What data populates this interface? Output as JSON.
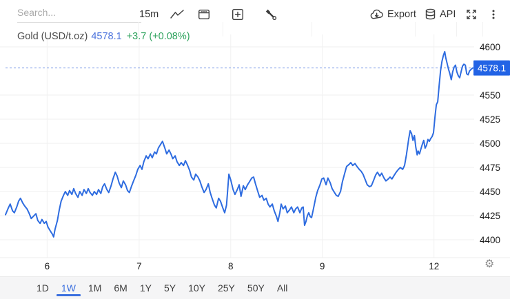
{
  "toolbar": {
    "search_placeholder": "Search...",
    "interval_label": "15m",
    "export_label": "Export",
    "api_label": "API"
  },
  "icons": {
    "settings": "⚙"
  },
  "header": {
    "symbol": "Gold (USD/t.oz)",
    "price": "4578.1",
    "change": "+3.7 (+0.08%)"
  },
  "colors": {
    "line": "#2e6ce0",
    "badge": "#2263e5",
    "accent_blue": "#3a6fdf",
    "up_green": "#2da25c",
    "price_blue": "#4a72dc"
  },
  "timeframes": [
    {
      "label": "1D",
      "active": false
    },
    {
      "label": "1W",
      "active": true
    },
    {
      "label": "1M",
      "active": false
    },
    {
      "label": "6M",
      "active": false
    },
    {
      "label": "1Y",
      "active": false
    },
    {
      "label": "5Y",
      "active": false
    },
    {
      "label": "10Y",
      "active": false
    },
    {
      "label": "25Y",
      "active": false
    },
    {
      "label": "50Y",
      "active": false
    },
    {
      "label": "All",
      "active": false
    }
  ],
  "chart_data": {
    "type": "line",
    "title": "Gold (USD/t.oz)",
    "interval": "15m",
    "range": "1W",
    "price": 4578.1,
    "price_label": "4578.1",
    "price_line": 4578.1,
    "change": "+3.7 (+0.08%)",
    "ylim": [
      4400,
      4600
    ],
    "y_ticks": [
      4600,
      4550,
      4525,
      4500,
      4475,
      4450,
      4425,
      4400
    ],
    "x_ticks": [
      {
        "label": "6",
        "pct": 8.9
      },
      {
        "label": "7",
        "pct": 28.6
      },
      {
        "label": "8",
        "pct": 48.2
      },
      {
        "label": "9",
        "pct": 67.8
      },
      {
        "label": "12",
        "pct": 91.7
      }
    ],
    "grid": true,
    "legend": "none",
    "line_color": "#2e6ce0",
    "badge_color": "#2263e5",
    "series": [
      {
        "name": "Gold (USD/t.oz)",
        "points": [
          [
            0,
            4426
          ],
          [
            0.6,
            4433
          ],
          [
            1,
            4437
          ],
          [
            1.5,
            4430
          ],
          [
            1.9,
            4428
          ],
          [
            2.4,
            4434
          ],
          [
            2.8,
            4440
          ],
          [
            3.2,
            4443
          ],
          [
            3.7,
            4438
          ],
          [
            4.1,
            4435
          ],
          [
            4.6,
            4432
          ],
          [
            5,
            4428
          ],
          [
            5.5,
            4422
          ],
          [
            5.9,
            4424
          ],
          [
            6.5,
            4427
          ],
          [
            6.9,
            4420
          ],
          [
            7.4,
            4417
          ],
          [
            7.8,
            4421
          ],
          [
            8.3,
            4417
          ],
          [
            8.7,
            4419
          ],
          [
            9.1,
            4413
          ],
          [
            9.6,
            4409
          ],
          [
            10,
            4406
          ],
          [
            10.3,
            4403
          ],
          [
            10.6,
            4411
          ],
          [
            11.1,
            4420
          ],
          [
            11.5,
            4431
          ],
          [
            11.9,
            4440
          ],
          [
            12.4,
            4446
          ],
          [
            12.8,
            4450
          ],
          [
            13.3,
            4446
          ],
          [
            13.7,
            4451
          ],
          [
            14.2,
            4447
          ],
          [
            14.6,
            4453
          ],
          [
            15,
            4448
          ],
          [
            15.5,
            4444
          ],
          [
            15.9,
            4450
          ],
          [
            16.4,
            4446
          ],
          [
            16.8,
            4452
          ],
          [
            17.3,
            4448
          ],
          [
            17.7,
            4453
          ],
          [
            18.1,
            4449
          ],
          [
            18.6,
            4446
          ],
          [
            19,
            4450
          ],
          [
            19.5,
            4447
          ],
          [
            19.9,
            4452
          ],
          [
            20.4,
            4448
          ],
          [
            20.8,
            4455
          ],
          [
            21.2,
            4458
          ],
          [
            21.7,
            4452
          ],
          [
            22.1,
            4449
          ],
          [
            22.6,
            4456
          ],
          [
            23,
            4463
          ],
          [
            23.5,
            4470
          ],
          [
            23.9,
            4466
          ],
          [
            24.3,
            4459
          ],
          [
            24.8,
            4454
          ],
          [
            25.2,
            4461
          ],
          [
            25.7,
            4457
          ],
          [
            26.1,
            4451
          ],
          [
            26.5,
            4449
          ],
          [
            27,
            4456
          ],
          [
            27.4,
            4461
          ],
          [
            27.9,
            4467
          ],
          [
            28.3,
            4473
          ],
          [
            28.8,
            4477
          ],
          [
            29.2,
            4473
          ],
          [
            29.6,
            4481
          ],
          [
            30.1,
            4487
          ],
          [
            30.5,
            4484
          ],
          [
            31,
            4489
          ],
          [
            31.4,
            4485
          ],
          [
            31.9,
            4491
          ],
          [
            32.3,
            4489
          ],
          [
            32.7,
            4495
          ],
          [
            33.2,
            4499
          ],
          [
            33.6,
            4502
          ],
          [
            34.1,
            4495
          ],
          [
            34.5,
            4489
          ],
          [
            35,
            4493
          ],
          [
            35.4,
            4489
          ],
          [
            35.8,
            4484
          ],
          [
            36.3,
            4487
          ],
          [
            36.7,
            4481
          ],
          [
            37.2,
            4477
          ],
          [
            37.6,
            4480
          ],
          [
            38.1,
            4477
          ],
          [
            38.5,
            4482
          ],
          [
            38.9,
            4478
          ],
          [
            39.4,
            4472
          ],
          [
            39.8,
            4465
          ],
          [
            40.3,
            4462
          ],
          [
            40.7,
            4468
          ],
          [
            41.2,
            4465
          ],
          [
            41.6,
            4461
          ],
          [
            42,
            4455
          ],
          [
            42.5,
            4449
          ],
          [
            42.9,
            4452
          ],
          [
            43.4,
            4458
          ],
          [
            43.8,
            4449
          ],
          [
            44.2,
            4443
          ],
          [
            44.7,
            4436
          ],
          [
            45.1,
            4433
          ],
          [
            45.6,
            4443
          ],
          [
            46,
            4440
          ],
          [
            46.5,
            4433
          ],
          [
            46.9,
            4428
          ],
          [
            47.3,
            4436
          ],
          [
            47.8,
            4468
          ],
          [
            48.2,
            4462
          ],
          [
            48.7,
            4452
          ],
          [
            49.1,
            4447
          ],
          [
            49.6,
            4452
          ],
          [
            50,
            4457
          ],
          [
            50.4,
            4445
          ],
          [
            50.9,
            4456
          ],
          [
            51.3,
            4452
          ],
          [
            51.8,
            4457
          ],
          [
            52.2,
            4460
          ],
          [
            52.7,
            4464
          ],
          [
            53.1,
            4465
          ],
          [
            53.5,
            4458
          ],
          [
            54,
            4450
          ],
          [
            54.4,
            4444
          ],
          [
            54.9,
            4446
          ],
          [
            55.3,
            4441
          ],
          [
            55.8,
            4443
          ],
          [
            56.2,
            4437
          ],
          [
            56.6,
            4434
          ],
          [
            57.1,
            4437
          ],
          [
            57.5,
            4430
          ],
          [
            58,
            4424
          ],
          [
            58.3,
            4419
          ],
          [
            58.7,
            4428
          ],
          [
            59,
            4437
          ],
          [
            59.4,
            4432
          ],
          [
            59.9,
            4435
          ],
          [
            60.3,
            4428
          ],
          [
            60.8,
            4431
          ],
          [
            61.2,
            4434
          ],
          [
            61.7,
            4428
          ],
          [
            62.1,
            4432
          ],
          [
            62.5,
            4434
          ],
          [
            63,
            4428
          ],
          [
            63.4,
            4433
          ],
          [
            63.7,
            4434
          ],
          [
            64,
            4415
          ],
          [
            64.3,
            4419
          ],
          [
            64.6,
            4425
          ],
          [
            64.9,
            4428
          ],
          [
            65.2,
            4424
          ],
          [
            65.5,
            4423
          ],
          [
            65.9,
            4432
          ],
          [
            66.4,
            4444
          ],
          [
            66.8,
            4451
          ],
          [
            67.3,
            4457
          ],
          [
            67.7,
            4463
          ],
          [
            68.1,
            4464
          ],
          [
            68.6,
            4457
          ],
          [
            69,
            4464
          ],
          [
            69.5,
            4459
          ],
          [
            69.9,
            4453
          ],
          [
            70.4,
            4449
          ],
          [
            70.8,
            4446
          ],
          [
            71.2,
            4445
          ],
          [
            71.7,
            4450
          ],
          [
            72.1,
            4460
          ],
          [
            72.6,
            4469
          ],
          [
            73,
            4476
          ],
          [
            73.5,
            4478
          ],
          [
            73.9,
            4480
          ],
          [
            74.3,
            4477
          ],
          [
            74.8,
            4479
          ],
          [
            75.2,
            4476
          ],
          [
            75.7,
            4473
          ],
          [
            76.1,
            4471
          ],
          [
            76.5,
            4468
          ],
          [
            77,
            4462
          ],
          [
            77.4,
            4457
          ],
          [
            77.9,
            4455
          ],
          [
            78.3,
            4456
          ],
          [
            78.8,
            4462
          ],
          [
            79.2,
            4467
          ],
          [
            79.6,
            4470
          ],
          [
            80.1,
            4466
          ],
          [
            80.5,
            4469
          ],
          [
            81,
            4464
          ],
          [
            81.4,
            4461
          ],
          [
            81.9,
            4463
          ],
          [
            82.3,
            4465
          ],
          [
            82.7,
            4463
          ],
          [
            83.2,
            4467
          ],
          [
            83.6,
            4470
          ],
          [
            84.1,
            4473
          ],
          [
            84.5,
            4475
          ],
          [
            85,
            4473
          ],
          [
            85.4,
            4477
          ],
          [
            85.8,
            4488
          ],
          [
            86.3,
            4505
          ],
          [
            86.6,
            4513
          ],
          [
            86.9,
            4510
          ],
          [
            87.2,
            4503
          ],
          [
            87.5,
            4508
          ],
          [
            87.8,
            4496
          ],
          [
            88.1,
            4488
          ],
          [
            88.3,
            4492
          ],
          [
            88.6,
            4489
          ],
          [
            88.9,
            4494
          ],
          [
            89.2,
            4499
          ],
          [
            89.5,
            4503
          ],
          [
            89.8,
            4495
          ],
          [
            90.1,
            4498
          ],
          [
            90.4,
            4504
          ],
          [
            90.7,
            4502
          ],
          [
            91,
            4505
          ],
          [
            91.3,
            4507
          ],
          [
            91.6,
            4511
          ],
          [
            91.9,
            4527
          ],
          [
            92.2,
            4540
          ],
          [
            92.5,
            4543
          ],
          [
            92.8,
            4560
          ],
          [
            93.1,
            4575
          ],
          [
            93.4,
            4585
          ],
          [
            93.7,
            4591
          ],
          [
            94,
            4595
          ],
          [
            94.2,
            4589
          ],
          [
            94.5,
            4583
          ],
          [
            94.8,
            4577
          ],
          [
            95.1,
            4572
          ],
          [
            95.4,
            4566
          ],
          [
            95.7,
            4574
          ],
          [
            96,
            4579
          ],
          [
            96.3,
            4581
          ],
          [
            96.6,
            4574
          ],
          [
            96.9,
            4570
          ],
          [
            97.2,
            4568
          ],
          [
            97.5,
            4574
          ],
          [
            97.8,
            4580
          ],
          [
            98.1,
            4582
          ],
          [
            98.4,
            4581
          ],
          [
            98.7,
            4572
          ],
          [
            99,
            4571
          ],
          [
            99.3,
            4575
          ],
          [
            99.7,
            4577
          ],
          [
            100,
            4578.1
          ]
        ]
      }
    ]
  }
}
